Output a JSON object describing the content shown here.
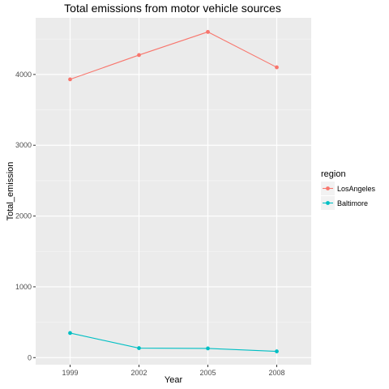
{
  "chart_data": {
    "type": "line",
    "title": "Total emissions from motor vehicle sources",
    "xlabel": "Year",
    "ylabel": "Total_emission",
    "x": [
      1999,
      2002,
      2005,
      2008
    ],
    "x_tick_labels": [
      "1999",
      "2002",
      "2005",
      "2008"
    ],
    "xlim": [
      1997.5,
      2009.5
    ],
    "y_ticks": [
      0,
      1000,
      2000,
      3000,
      4000
    ],
    "y_tick_labels": [
      "0",
      "1000",
      "2000",
      "3000",
      "4000"
    ],
    "ylim": [
      -100,
      4800
    ],
    "grid": true,
    "legend": {
      "title": "region",
      "position": "right"
    },
    "series": [
      {
        "name": "LosAngeles",
        "color": "#F8766D",
        "values": [
          3931,
          4274,
          4601,
          4101
        ]
      },
      {
        "name": "Baltimore",
        "color": "#00BFC4",
        "values": [
          347,
          134,
          130,
          88
        ]
      }
    ]
  },
  "colors": {
    "panel_background": "#EBEBEB",
    "grid_major": "#FFFFFF",
    "tick_text": "#4D4D4D"
  }
}
